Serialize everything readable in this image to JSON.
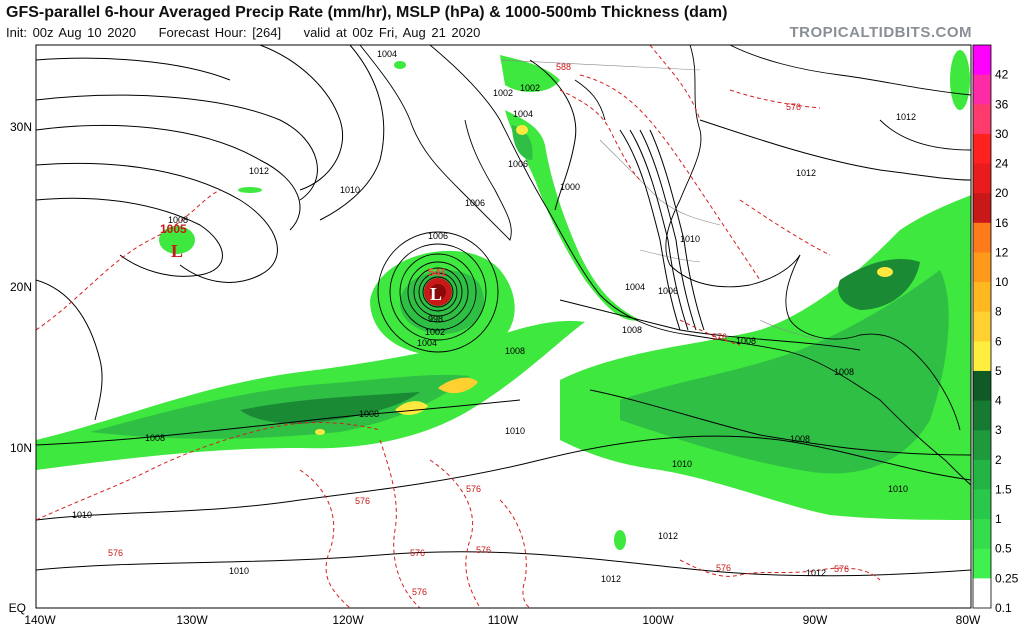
{
  "header": {
    "title": "GFS-parallel 6-hour Averaged Precip Rate (mm/hr), MSLP (hPa) & 1000-500mb Thickness (dam)",
    "init": "Init: 00z Aug 10 2020",
    "forecast_hour": "Forecast Hour: [264]",
    "valid": "valid at 00z Fri, Aug 21 2020",
    "source": "TROPICALTIDBITS.COM"
  },
  "colors": {
    "light_green": "#3ee83e",
    "medium_green": "#2fbf45",
    "dark_green": "#1a8a35",
    "yellow": "#ffe940",
    "orange": "#f5a623",
    "red": "#e02020",
    "isobar": "#000000",
    "thickness": "#d42020"
  },
  "axes": {
    "lon_labels": [
      "140W",
      "130W",
      "120W",
      "110W",
      "100W",
      "90W",
      "80W"
    ],
    "lat_labels": [
      "30N",
      "20N",
      "10N",
      "EQ"
    ]
  },
  "colorbar": {
    "levels": [
      "42",
      "36",
      "30",
      "24",
      "20",
      "16",
      "12",
      "10",
      "8",
      "6",
      "5",
      "4",
      "3",
      "2",
      "1.5",
      "1",
      "0.5",
      "0.25",
      "0.1"
    ],
    "colors": [
      "#ff00ff",
      "#ff2aa6",
      "#ff3b6e",
      "#ff2020",
      "#e81c1c",
      "#c81818",
      "#ff7a1a",
      "#ff9a1a",
      "#ffb820",
      "#ffd030",
      "#ffee40",
      "#0f5a25",
      "#167a32",
      "#1e9a3c",
      "#23b443",
      "#2ac84a",
      "#35dc4c",
      "#40ef50",
      "#ffffff"
    ]
  },
  "pressure_labels": [
    "1004",
    "1002",
    "1002",
    "1004",
    "1006",
    "1006",
    "1000",
    "1012",
    "1012",
    "1010",
    "1008",
    "1005",
    "1006",
    "998",
    "1002",
    "1004",
    "1008",
    "1008",
    "1008",
    "1010",
    "1004",
    "1006",
    "1008",
    "1010",
    "1008",
    "1008",
    "1010",
    "1010",
    "1010",
    "1010",
    "1012",
    "1012",
    "1012",
    "1012"
  ],
  "thickness_labels": [
    "588",
    "576",
    "576",
    "576",
    "576",
    "576",
    "576",
    "576",
    "576",
    "576",
    "576"
  ],
  "lows": [
    {
      "letter": "L",
      "value": "1005"
    },
    {
      "letter": "L",
      "value": "541"
    }
  ]
}
